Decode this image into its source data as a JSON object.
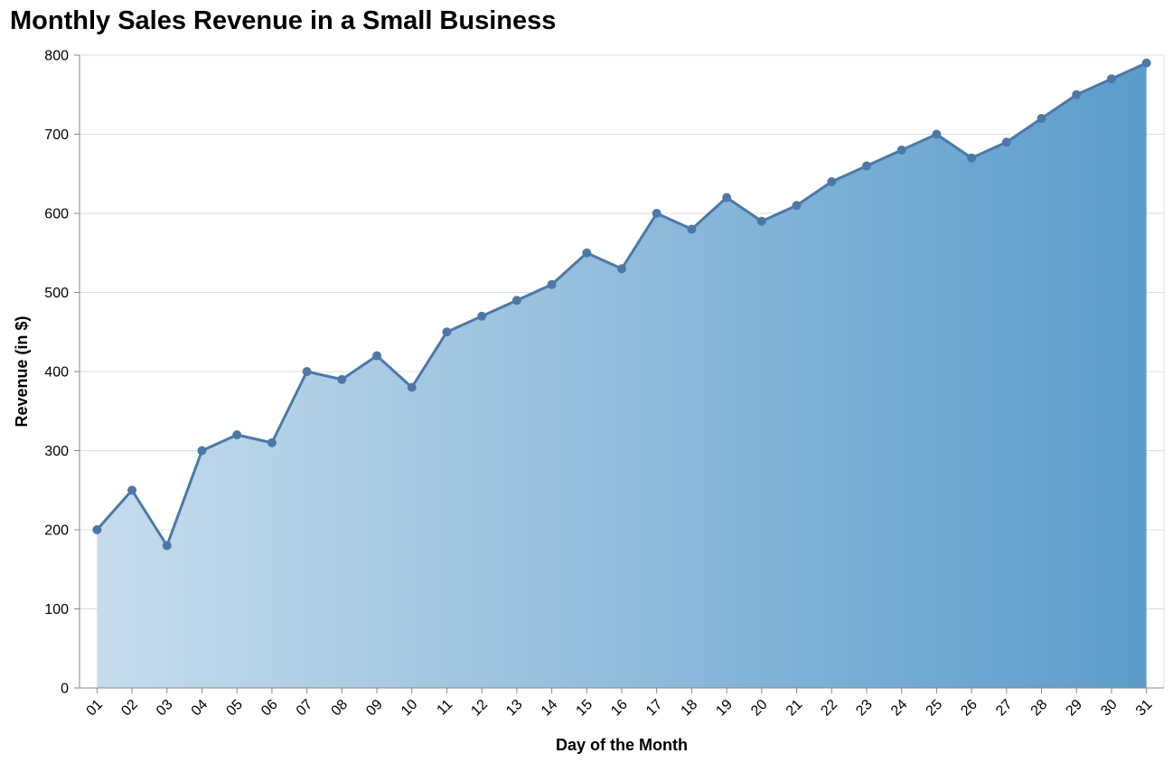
{
  "chart_data": {
    "type": "area",
    "title": "Monthly Sales Revenue in a Small Business",
    "xlabel": "Day of the Month",
    "ylabel": "Revenue (in $)",
    "categories": [
      "01",
      "02",
      "03",
      "04",
      "05",
      "06",
      "07",
      "08",
      "09",
      "10",
      "11",
      "12",
      "13",
      "14",
      "15",
      "16",
      "17",
      "18",
      "19",
      "20",
      "21",
      "22",
      "23",
      "24",
      "25",
      "26",
      "27",
      "28",
      "29",
      "30",
      "31"
    ],
    "series": [
      {
        "values": [
          200,
          250,
          180,
          300,
          320,
          310,
          400,
          390,
          420,
          380,
          450,
          470,
          490,
          510,
          550,
          530,
          600,
          580,
          620,
          590,
          610,
          640,
          660,
          680,
          700,
          670,
          690,
          720,
          750,
          770,
          790
        ]
      }
    ],
    "ylim": [
      0,
      800
    ],
    "yticks": [
      0,
      100,
      200,
      300,
      400,
      500,
      600,
      700,
      800
    ],
    "grid": true,
    "legend": "none",
    "colors": {
      "line": "#4c78a8",
      "fill_start": "#c6dcec",
      "fill_end": "#5b9ccb",
      "grid": "#dddddd",
      "axis": "#888888"
    }
  }
}
